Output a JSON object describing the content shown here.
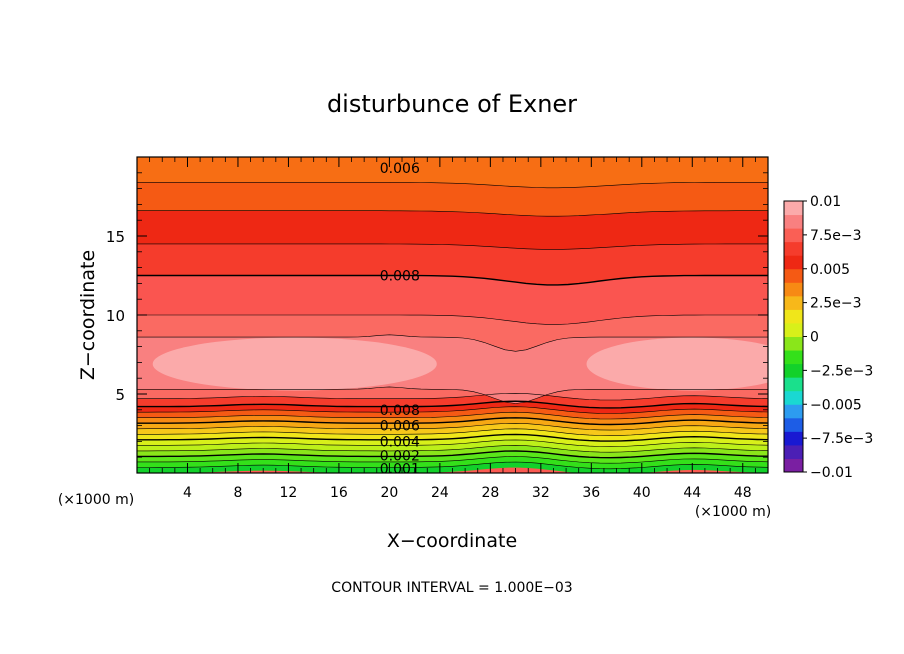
{
  "chart_data": {
    "type": "heatmap",
    "title": "disturbunce of Exner",
    "xlabel": "X−coordinate",
    "ylabel": "Z−coordinate",
    "x_unit": "(×1000 m)",
    "x_unit_right": "(×1000 m)",
    "xlim": [
      0,
      50
    ],
    "ylim": [
      0,
      20
    ],
    "x_ticks": [
      "4",
      "8",
      "12",
      "16",
      "20",
      "24",
      "28",
      "32",
      "36",
      "40",
      "44",
      "48"
    ],
    "y_ticks": [
      "5",
      "10",
      "15"
    ],
    "footer": "CONTOUR INTERVAL = 1.000E−03",
    "contour_interval": 0.001,
    "colorbar": {
      "min": -0.01,
      "max": 0.01,
      "labels": [
        "0.01",
        "7.5e−3",
        "0.005",
        "2.5e−3",
        "0",
        "−2.5e−3",
        "−0.005",
        "−7.5e−3",
        "−0.01"
      ],
      "colors": [
        "#7a1fa2",
        "#4b1fb5",
        "#1919d2",
        "#1d5de6",
        "#2d9cf0",
        "#1ad8d2",
        "#1ae08c",
        "#12d12a",
        "#34e01a",
        "#8ae61a",
        "#d8f01a",
        "#f0e61a",
        "#f7b81a",
        "#f78a14",
        "#f55a14",
        "#ee2814",
        "#f53c2c",
        "#fa5f55",
        "#f98080",
        "#fbaaaa"
      ]
    },
    "contour_labels": [
      {
        "text": "0.006",
        "x": 19.0,
        "z": 19.3
      },
      {
        "text": "0.008",
        "x": 19.0,
        "z": 12.5
      },
      {
        "text": "0.008",
        "x": 19.0,
        "z": 4.0
      },
      {
        "text": "0.006",
        "x": 19.0,
        "z": 3.0
      },
      {
        "text": "0.004",
        "x": 19.0,
        "z": 2.0
      },
      {
        "text": "0.002",
        "x": 19.0,
        "z": 1.1
      },
      {
        "text": "0.001",
        "x": 19.0,
        "z": 0.3
      }
    ]
  }
}
